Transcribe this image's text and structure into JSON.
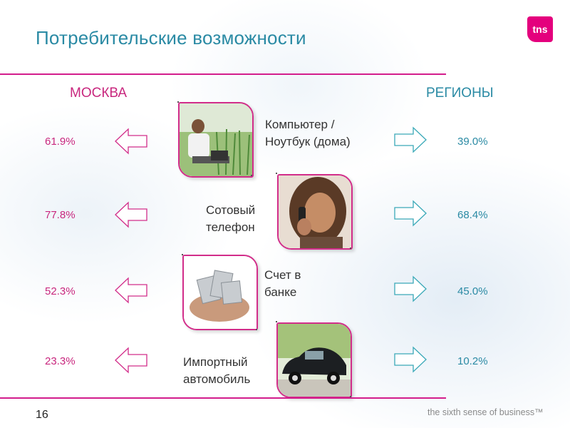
{
  "slide": {
    "title": "Потребительские возможности",
    "page_number": "16",
    "tagline": "the sixth sense of business™",
    "logo_text": "tns"
  },
  "columns": {
    "left": "МОСКВА",
    "right": "РЕГИОНЫ"
  },
  "rows": [
    {
      "label_lines": [
        "Компьютер /",
        "Ноутбук (дома)"
      ],
      "moscow": "61.9%",
      "regions": "39.0%",
      "image": "man-with-laptop-photo"
    },
    {
      "label_lines": [
        "Сотовый",
        "телефон"
      ],
      "moscow": "77.8%",
      "regions": "68.4%",
      "image": "woman-on-phone-photo"
    },
    {
      "label_lines": [
        "Счет в",
        "банке"
      ],
      "moscow": "52.3%",
      "regions": "45.0%",
      "image": "hands-with-money-photo"
    },
    {
      "label_lines": [
        "Импортный",
        "автомобиль"
      ],
      "moscow": "23.3%",
      "regions": "10.2%",
      "image": "vintage-car-photo"
    }
  ],
  "colors": {
    "accent_magenta": "#d31d8c",
    "teal_text": "#2a8aa4",
    "magenta_text": "#c8277e"
  }
}
